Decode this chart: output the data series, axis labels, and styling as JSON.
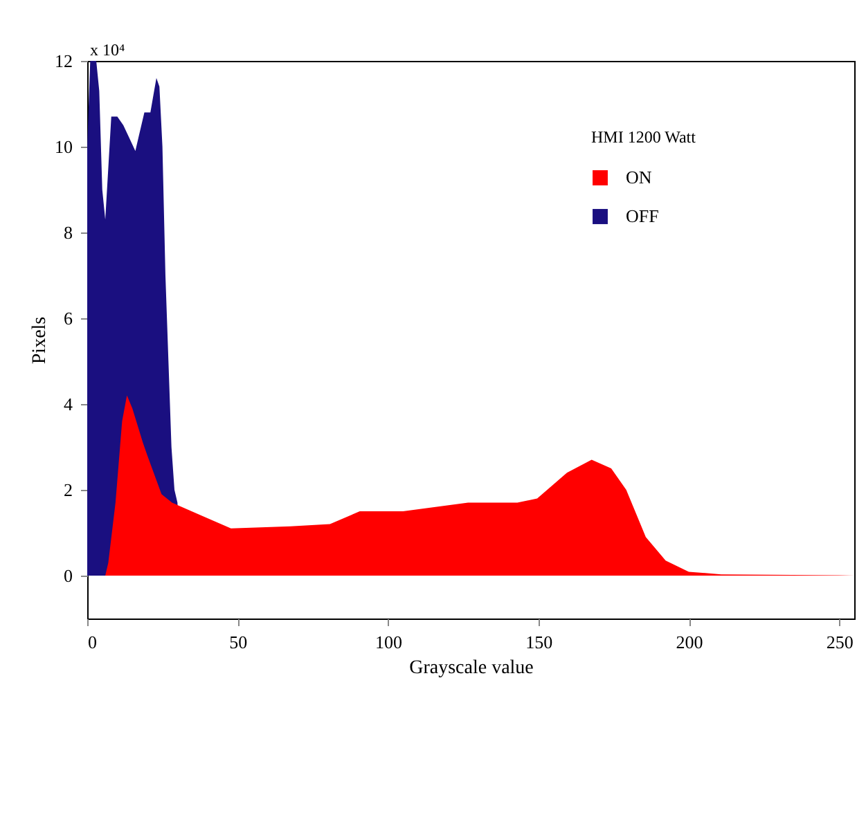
{
  "chart_data": {
    "type": "area",
    "xlabel": "Grayscale value",
    "ylabel": "Pixels",
    "legend_title": "HMI 1200 Watt",
    "annotations": [
      "x 10⁴"
    ],
    "xlim": [
      0,
      255
    ],
    "xticks": [
      0,
      50,
      100,
      150,
      200,
      250
    ],
    "ylim": [
      -1,
      12
    ],
    "yticks": [
      0,
      2,
      4,
      6,
      8,
      10,
      12
    ],
    "grid": false,
    "legend": "top right",
    "series": [
      {
        "name": "ON",
        "color": "#ff0000",
        "x": [
          6,
          7,
          9.4,
          11.6,
          13.2,
          15,
          18.5,
          20,
          24.7,
          28.2,
          38,
          47.8,
          67.6,
          80.7,
          90.6,
          105,
          126.6,
          143,
          149.6,
          159.5,
          167.7,
          174.2,
          179.2,
          185.7,
          192.3,
          200,
          210.8,
          250,
          255
        ],
        "values": [
          0,
          0.3,
          1.7,
          3.6,
          4.2,
          3.9,
          3.1,
          2.8,
          1.9,
          1.7,
          1.4,
          1.1,
          1.15,
          1.2,
          1.5,
          1.5,
          1.7,
          1.7,
          1.8,
          2.4,
          2.7,
          2.5,
          2.0,
          0.9,
          0.35,
          0.09,
          0.03,
          0.01,
          0
        ]
      },
      {
        "name": "OFF",
        "color": "#1a0f80",
        "x": [
          0,
          1,
          3,
          4,
          5,
          6,
          7,
          8,
          10,
          12,
          14,
          16,
          17,
          19,
          21,
          22,
          23,
          24,
          25,
          26,
          27,
          28,
          29,
          30,
          31
        ],
        "values": [
          10,
          12,
          12,
          11.3,
          9,
          8.3,
          9.5,
          10.7,
          10.7,
          10.5,
          10.2,
          9.9,
          10.2,
          10.8,
          10.8,
          11.2,
          11.6,
          11.4,
          10,
          7,
          5,
          3,
          2,
          1.7,
          0
        ]
      }
    ]
  }
}
